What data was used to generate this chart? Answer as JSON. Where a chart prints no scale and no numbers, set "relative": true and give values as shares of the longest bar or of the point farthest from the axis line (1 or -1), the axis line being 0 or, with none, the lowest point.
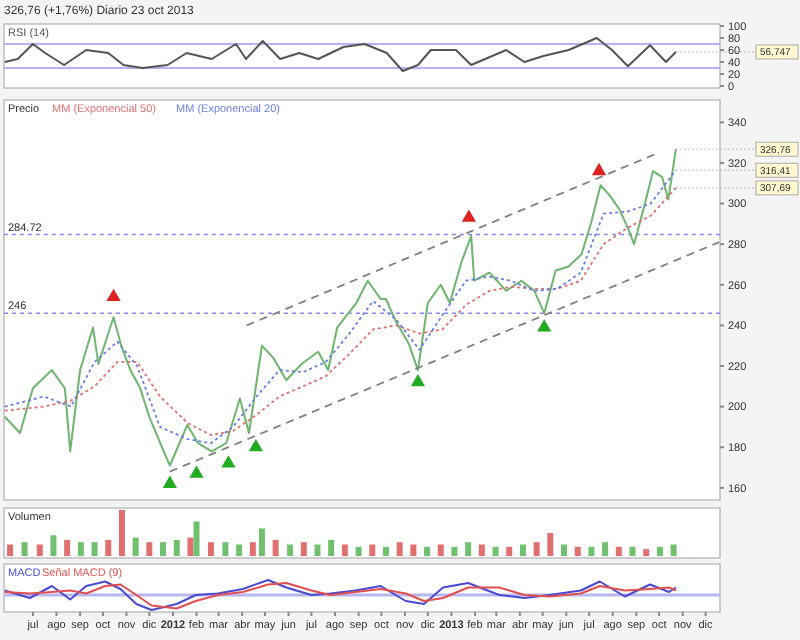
{
  "chart_data": [
    {
      "type": "line",
      "title": "326,76 (+1,76%)   Diario 23 oct 2013",
      "xlim": [
        "2011-05-24",
        "2013-12-20"
      ],
      "ylim": [
        0,
        100
      ],
      "yticks": [
        0,
        20,
        40,
        60,
        80,
        100
      ],
      "tick_labels": "y",
      "legend": "top left",
      "ref_lines": [
        {
          "axis": "y",
          "value": 70,
          "color": "#9b9bf0"
        },
        {
          "axis": "y",
          "value": 30,
          "color": "#9b9bf0"
        }
      ],
      "annotations": [
        {
          "text": "56,747",
          "x": "2013-10-23",
          "y": 56.747
        }
      ],
      "series": [
        {
          "name": "RSI (14)",
          "color": "#555555",
          "x": [
            "2011-05-25",
            "2011-06-11",
            "2011-07-01",
            "2011-07-17",
            "2011-08-11",
            "2011-09-09",
            "2011-10-08",
            "2011-10-28",
            "2011-11-22",
            "2011-12-25",
            "2012-01-19",
            "2012-02-21",
            "2012-03-24",
            "2012-04-06",
            "2012-04-28",
            "2012-05-21",
            "2012-06-15",
            "2012-07-10",
            "2012-08-12",
            "2012-09-09",
            "2012-10-08",
            "2012-10-29",
            "2012-11-18",
            "2012-12-05",
            "2013-01-07",
            "2013-01-27",
            "2013-03-14",
            "2013-04-07",
            "2013-05-02",
            "2013-06-04",
            "2013-07-11",
            "2013-07-31",
            "2013-08-21",
            "2013-09-19",
            "2013-10-10",
            "2013-10-23"
          ],
          "values": [
            40,
            45,
            70,
            55,
            35,
            60,
            55,
            35,
            30,
            35,
            55,
            45,
            70,
            45,
            75,
            45,
            55,
            45,
            65,
            70,
            55,
            25,
            35,
            60,
            60,
            35,
            60,
            40,
            50,
            60,
            80,
            60,
            33,
            68,
            40,
            56.747
          ]
        }
      ]
    },
    {
      "type": "line",
      "title": "Precio",
      "xlim": [
        "2011-05-24",
        "2013-12-20"
      ],
      "ylim": [
        155,
        350
      ],
      "yticks": [
        160,
        180,
        200,
        220,
        240,
        260,
        280,
        300,
        320,
        340
      ],
      "tick_labels": "y",
      "legend": "top left",
      "ref_lines": [
        {
          "axis": "y",
          "value": 284.72,
          "label": "284.72",
          "color": "#8888ee"
        },
        {
          "axis": "y",
          "value": 246,
          "label": "246",
          "color": "#8888ee"
        }
      ],
      "annotations": [
        {
          "text": "326,76",
          "x": "2013-10-23",
          "y": 326.76
        },
        {
          "text": "316,41",
          "x": "2013-10-23",
          "y": 316.41
        },
        {
          "text": "307,69",
          "x": "2013-10-23",
          "y": 307.69
        }
      ],
      "series": [
        {
          "color": "#6fb46f",
          "x": [
            "2011-05-25",
            "2011-06-14",
            "2011-07-01",
            "2011-07-26",
            "2011-08-12",
            "2011-08-19",
            "2011-09-01",
            "2011-09-18",
            "2011-09-25",
            "2011-10-15",
            "2011-10-25",
            "2011-11-06",
            "2011-11-19",
            "2011-12-01",
            "2011-12-21",
            "2011-12-28",
            "2012-01-20",
            "2012-02-03",
            "2012-02-21",
            "2012-03-11",
            "2012-03-29",
            "2012-04-10",
            "2012-04-27",
            "2012-05-12",
            "2012-05-29",
            "2012-06-18",
            "2012-07-10",
            "2012-07-23",
            "2012-08-04",
            "2012-08-29",
            "2012-09-13",
            "2012-09-30",
            "2012-10-07",
            "2012-10-20",
            "2012-11-06",
            "2012-11-18",
            "2012-12-01",
            "2012-12-18",
            "2012-12-30",
            "2013-01-14",
            "2013-01-27",
            "2013-01-31",
            "2013-02-20",
            "2013-03-14",
            "2013-04-03",
            "2013-04-20",
            "2013-05-03",
            "2013-05-18",
            "2013-06-04",
            "2013-06-21",
            "2013-07-04",
            "2013-07-16",
            "2013-07-28",
            "2013-08-10",
            "2013-08-22",
            "2013-08-29",
            "2013-09-11",
            "2013-09-23",
            "2013-10-05",
            "2013-10-13",
            "2013-10-23"
          ],
          "values": [
            195,
            187,
            209,
            218,
            209,
            178,
            218,
            239,
            221,
            244,
            230,
            218,
            209,
            195,
            177,
            171,
            191,
            182,
            178,
            182,
            204,
            187,
            230,
            224,
            213,
            221,
            227,
            218,
            239,
            251,
            262,
            253,
            253,
            242,
            231,
            218,
            251,
            260,
            251,
            271,
            284,
            262,
            266,
            257,
            262,
            257,
            246,
            267,
            269,
            275,
            291,
            309,
            304,
            297,
            287,
            280,
            298,
            316,
            313,
            302,
            326.76
          ]
        },
        {
          "name": "MM (Exponencial 50)",
          "color": "#e07070",
          "line_style": "dotted",
          "x": [
            "2011-05-25",
            "2011-07-15",
            "2011-08-20",
            "2011-09-20",
            "2011-10-20",
            "2011-11-15",
            "2011-12-15",
            "2012-01-20",
            "2012-02-20",
            "2012-03-20",
            "2012-04-20",
            "2012-05-20",
            "2012-06-20",
            "2012-07-20",
            "2012-08-20",
            "2012-09-20",
            "2012-10-20",
            "2012-11-20",
            "2012-12-20",
            "2013-01-20",
            "2013-02-20",
            "2013-03-20",
            "2013-04-20",
            "2013-05-20",
            "2013-06-20",
            "2013-07-20",
            "2013-08-20",
            "2013-09-20",
            "2013-10-23"
          ],
          "values": [
            198,
            200,
            203,
            210,
            222,
            222,
            205,
            192,
            186,
            188,
            196,
            205,
            210,
            215,
            226,
            238,
            240,
            236,
            238,
            250,
            257,
            259,
            258,
            258,
            262,
            280,
            288,
            294,
            307.69
          ]
        },
        {
          "name": "MM (Exponencial 20)",
          "color": "#6a7fe0",
          "line_style": "dotted",
          "x": [
            "2011-05-25",
            "2011-07-15",
            "2011-08-20",
            "2011-09-20",
            "2011-10-20",
            "2011-11-15",
            "2011-12-15",
            "2012-01-20",
            "2012-02-20",
            "2012-03-20",
            "2012-04-20",
            "2012-05-20",
            "2012-06-20",
            "2012-07-20",
            "2012-08-20",
            "2012-09-20",
            "2012-10-20",
            "2012-11-20",
            "2012-12-20",
            "2013-01-20",
            "2013-02-20",
            "2013-03-20",
            "2013-04-20",
            "2013-05-20",
            "2013-06-20",
            "2013-07-20",
            "2013-08-20",
            "2013-09-20",
            "2013-10-23"
          ],
          "values": [
            200,
            205,
            200,
            222,
            232,
            220,
            190,
            184,
            182,
            190,
            205,
            218,
            217,
            222,
            236,
            252,
            243,
            228,
            245,
            262,
            264,
            262,
            257,
            258,
            266,
            295,
            296,
            300,
            316.41
          ]
        },
        {
          "color": "#808080",
          "line_style": "dashed",
          "x": [
            "2012-04-07",
            "2013-09-30"
          ],
          "values": [
            240,
            325
          ]
        },
        {
          "color": "#808080",
          "line_style": "dashed",
          "x": [
            "2011-12-28",
            "2013-12-19"
          ],
          "values": [
            168,
            281
          ]
        },
        {
          "type": "scatter",
          "marker": "triangle",
          "color": "#22aa22",
          "x": [
            "2011-12-28",
            "2012-02-01",
            "2012-03-14",
            "2012-04-19",
            "2012-11-18",
            "2013-05-03"
          ],
          "values": [
            162,
            167,
            172,
            180,
            212,
            239
          ]
        },
        {
          "type": "scatter",
          "marker": "triangle",
          "color": "#dd2222",
          "x": [
            "2011-10-15",
            "2013-01-24",
            "2013-07-14"
          ],
          "values": [
            254,
            293,
            316
          ]
        }
      ]
    },
    {
      "type": "bar",
      "title": "Volumen",
      "relative": true,
      "xlim": [
        "2011-05-24",
        "2013-12-20"
      ],
      "tick_labels": false,
      "series": [
        {
          "x": [
            "2011-06-01",
            "2011-06-20",
            "2011-07-10",
            "2011-07-28",
            "2011-08-15",
            "2011-09-02",
            "2011-09-20",
            "2011-10-08",
            "2011-10-26",
            "2011-11-13",
            "2011-12-01",
            "2011-12-19",
            "2012-01-06",
            "2012-01-24",
            "2012-02-01",
            "2012-02-20",
            "2012-03-10",
            "2012-03-28",
            "2012-04-15",
            "2012-04-27",
            "2012-05-15",
            "2012-06-03",
            "2012-06-21",
            "2012-07-09",
            "2012-07-27",
            "2012-08-14",
            "2012-09-01",
            "2012-09-19",
            "2012-10-07",
            "2012-10-25",
            "2012-11-12",
            "2012-11-30",
            "2012-12-18",
            "2013-01-05",
            "2013-01-23",
            "2013-02-10",
            "2013-02-28",
            "2013-03-18",
            "2013-04-05",
            "2013-04-23",
            "2013-05-11",
            "2013-05-29",
            "2013-06-16",
            "2013-07-04",
            "2013-07-22",
            "2013-08-09",
            "2013-08-27",
            "2013-09-14",
            "2013-10-02",
            "2013-10-20"
          ],
          "values": [
            0.25,
            0.3,
            0.25,
            0.45,
            0.35,
            0.3,
            0.3,
            0.35,
            1,
            0.4,
            0.3,
            0.3,
            0.35,
            0.4,
            0.75,
            0.3,
            0.3,
            0.25,
            0.3,
            0.6,
            0.35,
            0.25,
            0.3,
            0.25,
            0.35,
            0.25,
            0.2,
            0.25,
            0.2,
            0.3,
            0.25,
            0.2,
            0.25,
            0.2,
            0.3,
            0.25,
            0.2,
            0.2,
            0.25,
            0.3,
            0.5,
            0.25,
            0.2,
            0.2,
            0.3,
            0.2,
            0.2,
            0.15,
            0.2,
            0.25
          ],
          "colors": [
            "#e07070",
            "#70c070",
            "#e07070",
            "#70c070",
            "#e07070",
            "#70c070",
            "#70c070",
            "#e07070",
            "#e07070",
            "#70c070",
            "#e07070",
            "#70c070",
            "#70c070",
            "#e07070",
            "#70c070",
            "#e07070",
            "#70c070",
            "#70c070",
            "#e07070",
            "#70c070",
            "#e07070",
            "#70c070",
            "#e07070",
            "#70c070",
            "#70c070",
            "#e07070",
            "#70c070",
            "#e07070",
            "#70c070",
            "#e07070",
            "#e07070",
            "#70c070",
            "#e07070",
            "#70c070",
            "#70c070",
            "#e07070",
            "#70c070",
            "#e07070",
            "#70c070",
            "#e07070",
            "#e07070",
            "#70c070",
            "#e07070",
            "#70c070",
            "#70c070",
            "#e07070",
            "#70c070",
            "#e07070",
            "#70c070",
            "#70c070"
          ]
        }
      ]
    },
    {
      "type": "line",
      "relative": true,
      "xlim": [
        "2011-05-24",
        "2013-12-20"
      ],
      "tick_labels": "x",
      "legend": "top left",
      "ref_lines": [
        {
          "axis": "y",
          "value": 0,
          "color": "#b8b8f0"
        }
      ],
      "xticks": [
        {
          "value": "2011-07-01",
          "label": "jul"
        },
        {
          "value": "2011-08-01",
          "label": "ago"
        },
        {
          "value": "2011-09-01",
          "label": "sep"
        },
        {
          "value": "2011-10-01",
          "label": "oct"
        },
        {
          "value": "2011-11-01",
          "label": "nov"
        },
        {
          "value": "2011-12-01",
          "label": "dic"
        },
        {
          "value": "2012-01-01",
          "label": "2012"
        },
        {
          "value": "2012-02-01",
          "label": "feb"
        },
        {
          "value": "2012-03-01",
          "label": "mar"
        },
        {
          "value": "2012-04-01",
          "label": "abr"
        },
        {
          "value": "2012-05-01",
          "label": "may"
        },
        {
          "value": "2012-06-01",
          "label": "jun"
        },
        {
          "value": "2012-07-01",
          "label": "jul"
        },
        {
          "value": "2012-08-01",
          "label": "ago"
        },
        {
          "value": "2012-09-01",
          "label": "sep"
        },
        {
          "value": "2012-10-01",
          "label": "oct"
        },
        {
          "value": "2012-11-01",
          "label": "nov"
        },
        {
          "value": "2012-12-01",
          "label": "dic"
        },
        {
          "value": "2013-01-01",
          "label": "2013"
        },
        {
          "value": "2013-02-01",
          "label": "feb"
        },
        {
          "value": "2013-03-01",
          "label": "mar"
        },
        {
          "value": "2013-04-01",
          "label": "abr"
        },
        {
          "value": "2013-05-01",
          "label": "may"
        },
        {
          "value": "2013-06-01",
          "label": "jun"
        },
        {
          "value": "2013-07-01",
          "label": "jul"
        },
        {
          "value": "2013-08-01",
          "label": "ago"
        },
        {
          "value": "2013-09-01",
          "label": "sep"
        },
        {
          "value": "2013-10-01",
          "label": "oct"
        },
        {
          "value": "2013-11-01",
          "label": "nov"
        },
        {
          "value": "2013-12-01",
          "label": "dic"
        }
      ],
      "series": [
        {
          "name": "MACD",
          "color": "#4a4ad0",
          "x": [
            "2011-05-25",
            "2011-06-27",
            "2011-07-26",
            "2011-08-19",
            "2011-09-09",
            "2011-10-04",
            "2011-10-24",
            "2011-11-14",
            "2011-12-04",
            "2012-01-06",
            "2012-01-31",
            "2012-02-29",
            "2012-04-02",
            "2012-05-05",
            "2012-05-29",
            "2012-07-01",
            "2012-07-26",
            "2012-08-28",
            "2012-09-30",
            "2012-11-02",
            "2012-11-26",
            "2012-12-21",
            "2013-01-23",
            "2013-03-05",
            "2013-04-07",
            "2013-05-10",
            "2013-06-20",
            "2013-07-15",
            "2013-08-17",
            "2013-09-19",
            "2013-10-14",
            "2013-10-23"
          ],
          "values": [
            0.3,
            -0.2,
            0.6,
            -0.3,
            0.6,
            0.9,
            0.4,
            -0.6,
            -1,
            -0.6,
            0,
            0.1,
            0.4,
            1,
            0.5,
            0,
            0.1,
            0.3,
            0.6,
            -0.4,
            -0.6,
            0.5,
            0.8,
            0,
            -0.2,
            0,
            0.3,
            0.9,
            -0.1,
            0.7,
            0.2,
            0.5
          ]
        },
        {
          "name": "Señal MACD (9)",
          "color": "#e05050",
          "x": [
            "2011-05-25",
            "2011-06-27",
            "2011-07-26",
            "2011-08-19",
            "2011-09-09",
            "2011-10-04",
            "2011-10-24",
            "2011-11-14",
            "2011-12-04",
            "2012-01-06",
            "2012-01-31",
            "2012-02-29",
            "2012-04-02",
            "2012-05-05",
            "2012-05-29",
            "2012-07-01",
            "2012-07-26",
            "2012-08-28",
            "2012-09-30",
            "2012-11-02",
            "2012-11-26",
            "2012-12-21",
            "2013-01-23",
            "2013-03-05",
            "2013-04-07",
            "2013-05-10",
            "2013-06-20",
            "2013-07-15",
            "2013-08-17",
            "2013-09-19",
            "2013-10-14",
            "2013-10-23"
          ],
          "values": [
            0.2,
            0.1,
            0.2,
            0.3,
            0.1,
            0.6,
            0.7,
            0,
            -0.7,
            -0.9,
            -0.4,
            0,
            0.2,
            0.7,
            0.8,
            0.3,
            0,
            0.2,
            0.4,
            0.1,
            -0.4,
            -0.2,
            0.5,
            0.5,
            0,
            -0.1,
            0.1,
            0.6,
            0.3,
            0.4,
            0.5,
            0.3
          ]
        }
      ]
    }
  ]
}
